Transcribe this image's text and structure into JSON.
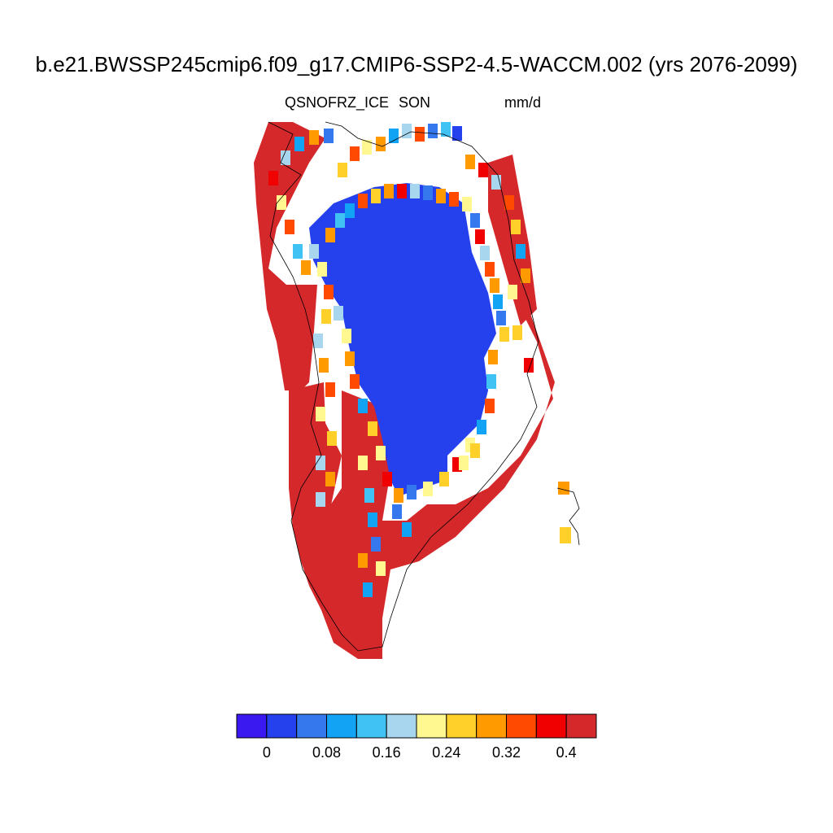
{
  "header": {
    "title": "b.e21.BWSSP245cmip6.f09_g17.CMIP6-SSP2-4.5-WACCM.002 (yrs 2076-2099)",
    "variable": "QSNOFRZ_ICE",
    "season": "SON",
    "units": "mm/d"
  },
  "colorbar": {
    "colors": [
      "#3a18f0",
      "#2541ee",
      "#3578ee",
      "#12a3f5",
      "#40c2f5",
      "#a8d6ef",
      "#fff891",
      "#ffd02a",
      "#ff9a00",
      "#ff4a00",
      "#f00000",
      "#d4282a"
    ],
    "tick_labels": [
      "0",
      "0.08",
      "0.16",
      "0.24",
      "0.32",
      "0.4"
    ]
  },
  "map": {
    "region": "Greenland",
    "legend_note": "filled grid cells colored by value; black coastline outline"
  }
}
